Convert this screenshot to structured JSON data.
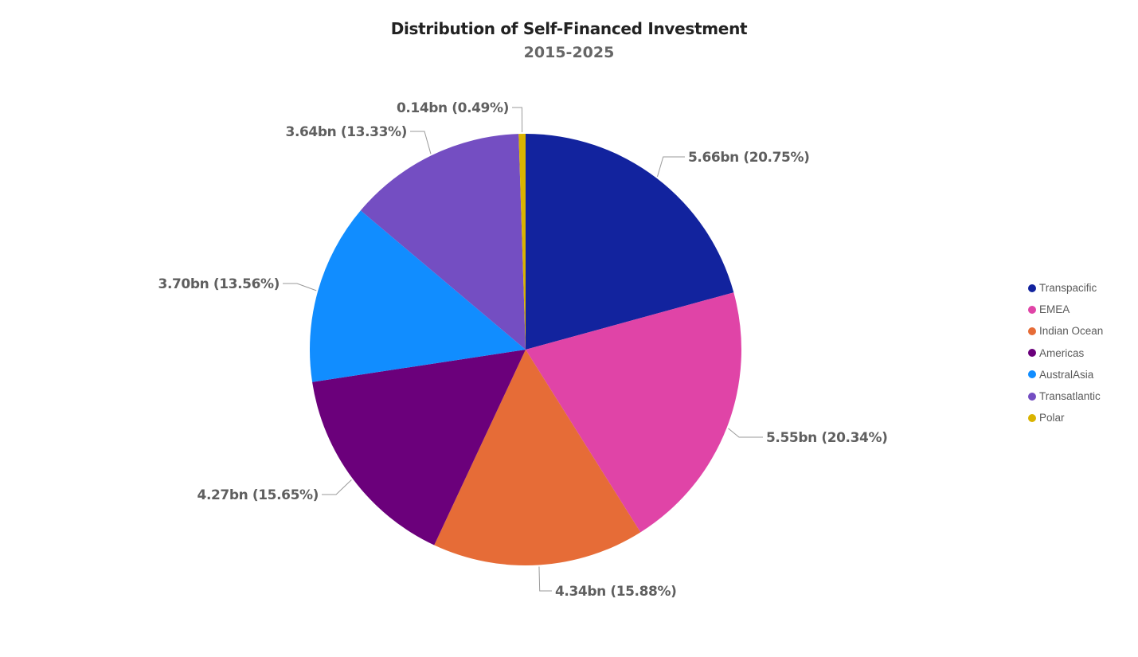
{
  "chart_data": {
    "type": "pie",
    "title": "Distribution of Self-Financed Investment",
    "subtitle": "2015-2025",
    "unit": "bn",
    "legend_position": "right",
    "start_angle_deg": 0,
    "direction": "clockwise",
    "slices": [
      {
        "name": "Transpacific",
        "value": 5.66,
        "percent": 20.75,
        "color": "#12239e",
        "label": "5.66bn (20.75%)"
      },
      {
        "name": "EMEA",
        "value": 5.55,
        "percent": 20.34,
        "color": "#e044a7",
        "label": "5.55bn (20.34%)"
      },
      {
        "name": "Indian Ocean",
        "value": 4.34,
        "percent": 15.88,
        "color": "#e66c37",
        "label": "4.34bn (15.88%)"
      },
      {
        "name": "Americas",
        "value": 4.27,
        "percent": 15.65,
        "color": "#6b007b",
        "label": "4.27bn (15.65%)"
      },
      {
        "name": "AustralAsia",
        "value": 3.7,
        "percent": 13.56,
        "color": "#118dff",
        "label": "3.70bn (13.56%)"
      },
      {
        "name": "Transatlantic",
        "value": 3.64,
        "percent": 13.33,
        "color": "#744ec2",
        "label": "3.64bn (13.33%)"
      },
      {
        "name": "Polar",
        "value": 0.14,
        "percent": 0.49,
        "color": "#d9b300",
        "label": "0.14bn (0.49%)"
      }
    ]
  }
}
